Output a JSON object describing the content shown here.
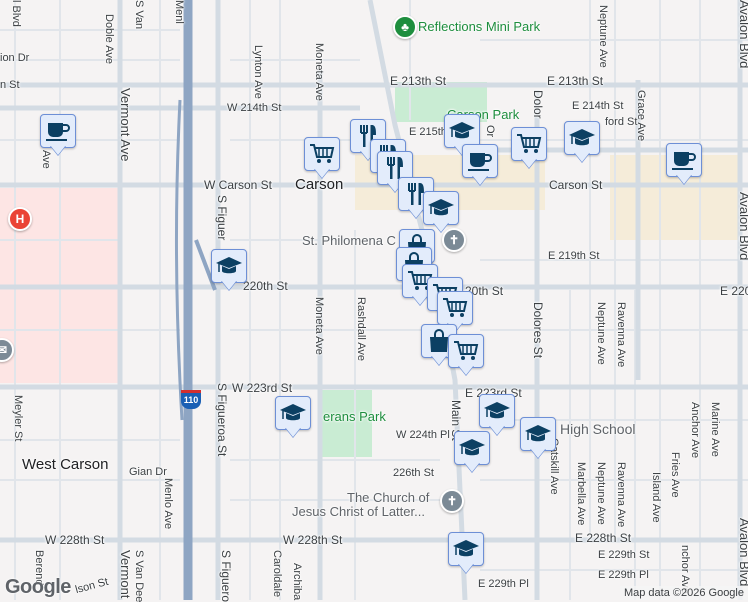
{
  "map": {
    "attribution": "Map data ©2026 Google",
    "logo": "Google",
    "colors": {
      "background": "#f5f3f3",
      "road": "#d3dbe3",
      "highway": "#8ea5c3",
      "park": "#c9ecd3",
      "hospital_zone": "#fde5e4",
      "commercial": "#f5ecd9",
      "marker_fill": "#e3ecfb",
      "marker_icon": "#0c4063"
    },
    "places": {
      "city_carson": "Carson",
      "city_west_carson": "West Carson",
      "park_reflections": "Reflections Mini Park",
      "park_carson": "Carson Park",
      "park_veterans": "erans Park",
      "church_philomena": "St. Philomena C",
      "church_lds_1": "The Church of",
      "church_lds_2": "Jesus Christ of Latter...",
      "high_school": "High School",
      "hospital": "H",
      "highway_shield": "110"
    },
    "streets": {
      "e213_w": "E 213th St",
      "e213_e": "E 213th St",
      "w214": "W 214th St",
      "e214": "E 214th St",
      "e215": "E 215th St",
      "ford": "ford St",
      "ion_dr": "ion Dr",
      "n_st": "n St",
      "w_carson": "W Carson St",
      "carson_st": "Carson St",
      "e219": "E 219th St",
      "w220": "220th St",
      "e220_mid": "20th St",
      "e220_east": "E 220",
      "w223": "W 223rd St",
      "e223": "E 223rd St",
      "w224pl": "W 224th Pl",
      "s226": "226th St",
      "w228_w": "W 228th St",
      "w228_e": "W 228th St",
      "e228": "E 228th St",
      "e229": "E 229th St",
      "e229pl": "E 229th Pl",
      "e229pl_w": "E 229th Pl",
      "gian": "Gian Dr",
      "doble": "Doble Ave",
      "vermont": "Vermont Ave",
      "vermont_s": "Vermont",
      "s_figueroa": "S Figueroa St",
      "s_figueroa_n": "S Figuer",
      "s_figueroa_s": "S Figuero",
      "lynton": "Lynton Ave",
      "moneta": "Moneta Ave",
      "moneta_s": "Moneta Ave",
      "rashdall": "Rashdall Ave",
      "dolores_n": "Dolor",
      "dolores": "Dolores St",
      "neptune_n": "Neptune Ave",
      "neptune_m": "Neptune Ave",
      "neptune_s": "Neptune Ave",
      "ravenna_m": "Ravenna Ave",
      "ravenna_s": "Ravenna Ave",
      "grace": "Grace Ave",
      "avalon_n": "Avalon Blvd",
      "avalon_m": "Avalon Blvd",
      "avalon_s": "Avalon Blvd",
      "meyler": "Meyler St",
      "menlo": "Menlo Ave",
      "menlo_n": "Menl",
      "s_van_n": "S Van",
      "s_van_s": "S Van Dee",
      "catskill": "Catskill Ave",
      "marbella": "Marbella Ave",
      "island": "Island Ave",
      "fries": "Fries Ave",
      "anchor": "Anchor Ave",
      "anchor_s": "nchor Ave",
      "marine": "Marine Ave",
      "carolda": "Caroldale",
      "archibald": "Archiba",
      "main": "Main St",
      "berend": "Berend",
      "nelson": "lson St",
      "d_ave": "Ave",
      "ora": "Or",
      "blvd_nw": "l Blvd"
    },
    "markers": [
      "coffee",
      "cart",
      "fork-knife",
      "fork-knife",
      "fork-knife",
      "school",
      "coffee",
      "cart",
      "school",
      "coffee",
      "fork-knife",
      "school",
      "shopping-bag",
      "shopping-bag",
      "cart",
      "cart",
      "cart",
      "shopping-bag",
      "cart",
      "school",
      "school",
      "school",
      "school",
      "school",
      "school"
    ]
  }
}
